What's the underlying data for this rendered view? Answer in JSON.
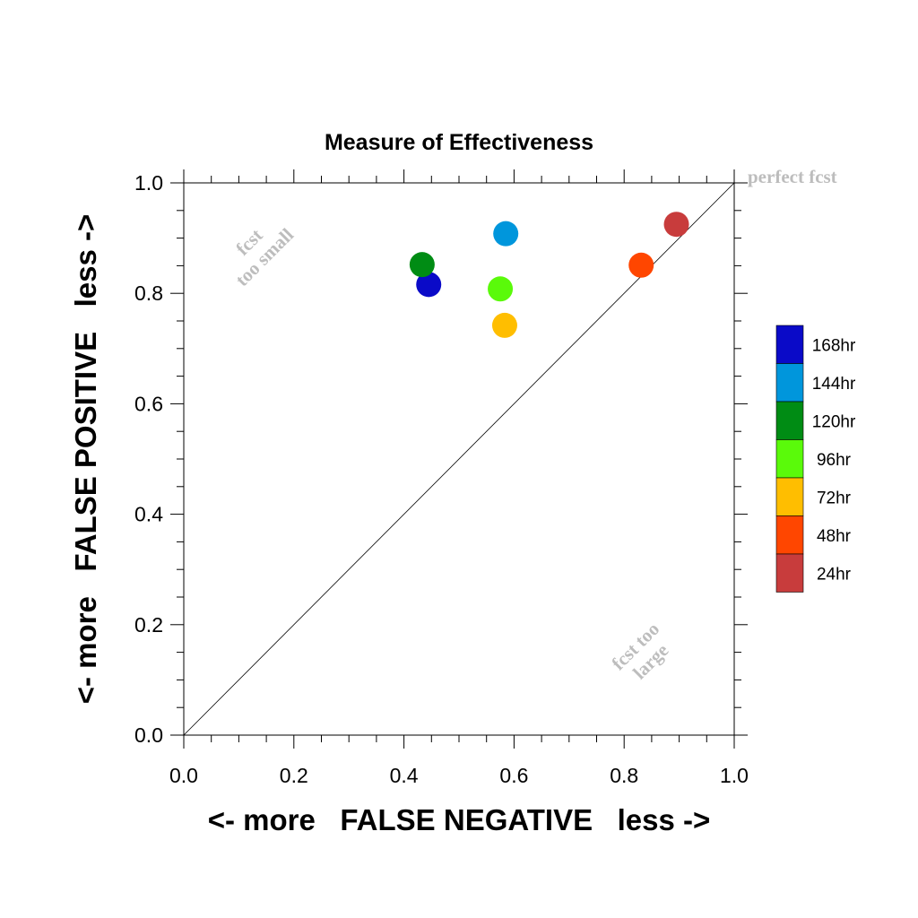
{
  "chart_data": {
    "type": "scatter",
    "title": "Measure of Effectiveness",
    "xlabel": "<- more   FALSE NEGATIVE   less ->",
    "ylabel": "<- more   FALSE POSITIVE   less ->",
    "xlim": [
      0.0,
      1.0
    ],
    "ylim": [
      0.0,
      1.0
    ],
    "xticks": [
      "0.0",
      "0.2",
      "0.4",
      "0.6",
      "0.8",
      "1.0"
    ],
    "yticks": [
      "0.0",
      "0.2",
      "0.4",
      "0.6",
      "0.8",
      "1.0"
    ],
    "grid": false,
    "diagonal_reference_line": true,
    "legend_position": "right",
    "annotations": {
      "top_right": "perfect fcst",
      "upper_left": [
        "fcst",
        "too small"
      ],
      "lower_right": [
        "fcst too",
        "large"
      ]
    },
    "series": [
      {
        "name": "168hr",
        "color": "#0a0ac8",
        "x": 0.445,
        "y": 0.816
      },
      {
        "name": "144hr",
        "color": "#0096dc",
        "x": 0.585,
        "y": 0.908
      },
      {
        "name": "120hr",
        "color": "#008c14",
        "x": 0.433,
        "y": 0.852
      },
      {
        "name": "96hr",
        "color": "#5afa0a",
        "x": 0.575,
        "y": 0.808
      },
      {
        "name": "72hr",
        "color": "#ffbe00",
        "x": 0.583,
        "y": 0.742
      },
      {
        "name": "48hr",
        "color": "#ff4600",
        "x": 0.831,
        "y": 0.851
      },
      {
        "name": "24hr",
        "color": "#c83c3c",
        "x": 0.895,
        "y": 0.925
      }
    ]
  }
}
